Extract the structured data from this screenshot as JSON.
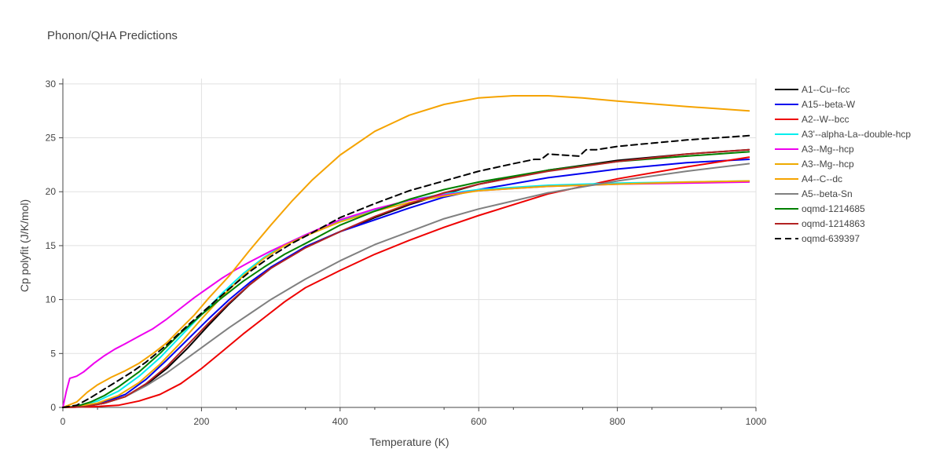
{
  "chart_data": {
    "type": "line",
    "title": "Phonon/QHA Predictions",
    "xlabel": "Temperature (K)",
    "ylabel": "Cp polyfit (J/K/mol)",
    "xlim": [
      0,
      1000
    ],
    "ylim": [
      0,
      30.5
    ],
    "xticks": [
      0,
      200,
      400,
      600,
      800,
      1000
    ],
    "yticks": [
      0,
      5,
      10,
      15,
      20,
      25,
      30
    ],
    "grid": true,
    "legend_position": "right",
    "series": [
      {
        "name": "A1--Cu--fcc",
        "color": "#000000",
        "dash": "solid",
        "points": [
          [
            0,
            0
          ],
          [
            30,
            0.05
          ],
          [
            60,
            0.4
          ],
          [
            90,
            1.0
          ],
          [
            120,
            2.1
          ],
          [
            150,
            3.6
          ],
          [
            180,
            5.5
          ],
          [
            210,
            7.6
          ],
          [
            240,
            9.6
          ],
          [
            270,
            11.4
          ],
          [
            300,
            12.9
          ],
          [
            350,
            14.9
          ],
          [
            400,
            16.3
          ],
          [
            450,
            17.6
          ],
          [
            500,
            18.8
          ],
          [
            550,
            19.8
          ],
          [
            600,
            20.7
          ],
          [
            700,
            22.0
          ],
          [
            800,
            22.9
          ],
          [
            900,
            23.5
          ],
          [
            990,
            23.9
          ]
        ]
      },
      {
        "name": "A15--beta-W",
        "color": "#0000ee",
        "dash": "solid",
        "points": [
          [
            0,
            0
          ],
          [
            30,
            0.05
          ],
          [
            60,
            0.5
          ],
          [
            90,
            1.2
          ],
          [
            120,
            2.6
          ],
          [
            150,
            4.4
          ],
          [
            180,
            6.3
          ],
          [
            210,
            8.2
          ],
          [
            240,
            10.0
          ],
          [
            270,
            11.6
          ],
          [
            300,
            13.0
          ],
          [
            350,
            14.9
          ],
          [
            400,
            16.3
          ],
          [
            450,
            17.4
          ],
          [
            500,
            18.5
          ],
          [
            550,
            19.5
          ],
          [
            600,
            20.2
          ],
          [
            700,
            21.3
          ],
          [
            800,
            22.1
          ],
          [
            900,
            22.7
          ],
          [
            990,
            23.0
          ]
        ]
      },
      {
        "name": "A2--W--bcc",
        "color": "#ee0000",
        "dash": "solid",
        "points": [
          [
            0,
            0
          ],
          [
            40,
            0.05
          ],
          [
            80,
            0.2
          ],
          [
            110,
            0.6
          ],
          [
            140,
            1.2
          ],
          [
            170,
            2.2
          ],
          [
            200,
            3.6
          ],
          [
            230,
            5.2
          ],
          [
            260,
            6.8
          ],
          [
            290,
            8.3
          ],
          [
            320,
            9.8
          ],
          [
            350,
            11.1
          ],
          [
            400,
            12.7
          ],
          [
            450,
            14.2
          ],
          [
            500,
            15.5
          ],
          [
            550,
            16.7
          ],
          [
            600,
            17.8
          ],
          [
            700,
            19.8
          ],
          [
            800,
            21.2
          ],
          [
            900,
            22.3
          ],
          [
            990,
            23.2
          ]
        ]
      },
      {
        "name": "A3'--alpha-La--double-hcp",
        "color": "#00eeee",
        "dash": "solid",
        "points": [
          [
            0,
            0
          ],
          [
            20,
            0.1
          ],
          [
            50,
            0.6
          ],
          [
            80,
            1.5
          ],
          [
            110,
            2.9
          ],
          [
            140,
            4.6
          ],
          [
            170,
            6.6
          ],
          [
            200,
            8.6
          ],
          [
            230,
            10.6
          ],
          [
            260,
            12.4
          ],
          [
            290,
            13.9
          ],
          [
            320,
            15.1
          ],
          [
            350,
            16.0
          ],
          [
            400,
            17.3
          ],
          [
            450,
            18.3
          ],
          [
            500,
            19.2
          ],
          [
            550,
            19.8
          ],
          [
            600,
            20.2
          ],
          [
            700,
            20.6
          ],
          [
            800,
            20.8
          ],
          [
            900,
            20.9
          ],
          [
            990,
            21.0
          ]
        ]
      },
      {
        "name": "A3--Mg--hcp",
        "color": "#ee00ee",
        "dash": "solid",
        "points": [
          [
            0,
            0
          ],
          [
            5,
            1.5
          ],
          [
            10,
            2.7
          ],
          [
            20,
            2.9
          ],
          [
            30,
            3.3
          ],
          [
            45,
            4.1
          ],
          [
            60,
            4.8
          ],
          [
            75,
            5.4
          ],
          [
            90,
            5.9
          ],
          [
            110,
            6.6
          ],
          [
            130,
            7.3
          ],
          [
            150,
            8.2
          ],
          [
            170,
            9.2
          ],
          [
            190,
            10.2
          ],
          [
            210,
            11.1
          ],
          [
            230,
            12.0
          ],
          [
            250,
            12.8
          ],
          [
            270,
            13.5
          ],
          [
            300,
            14.5
          ],
          [
            350,
            16.0
          ],
          [
            400,
            17.4
          ],
          [
            450,
            18.4
          ],
          [
            500,
            19.2
          ],
          [
            550,
            19.7
          ],
          [
            600,
            20.1
          ],
          [
            700,
            20.5
          ],
          [
            800,
            20.7
          ],
          [
            900,
            20.8
          ],
          [
            990,
            20.9
          ]
        ]
      },
      {
        "name": "A3--Mg--hcp",
        "color": "#eeaa00",
        "dash": "solid",
        "points": [
          [
            0,
            0
          ],
          [
            20,
            0.1
          ],
          [
            50,
            0.4
          ],
          [
            80,
            1.1
          ],
          [
            110,
            2.3
          ],
          [
            140,
            4.0
          ],
          [
            170,
            6.0
          ],
          [
            200,
            8.2
          ],
          [
            230,
            10.3
          ],
          [
            260,
            12.2
          ],
          [
            290,
            13.8
          ],
          [
            320,
            15.0
          ],
          [
            350,
            15.9
          ],
          [
            400,
            17.2
          ],
          [
            450,
            18.2
          ],
          [
            500,
            19.0
          ],
          [
            550,
            19.6
          ],
          [
            600,
            20.1
          ],
          [
            700,
            20.5
          ],
          [
            800,
            20.7
          ],
          [
            900,
            20.9
          ],
          [
            990,
            21.0
          ]
        ]
      },
      {
        "name": "A4--C--dc",
        "color": "#f5a300",
        "dash": "solid",
        "points": [
          [
            0,
            0
          ],
          [
            20,
            0.5
          ],
          [
            35,
            1.4
          ],
          [
            50,
            2.1
          ],
          [
            70,
            2.8
          ],
          [
            90,
            3.4
          ],
          [
            110,
            4.1
          ],
          [
            130,
            5.0
          ],
          [
            150,
            6.0
          ],
          [
            170,
            7.3
          ],
          [
            190,
            8.6
          ],
          [
            210,
            10.1
          ],
          [
            240,
            12.2
          ],
          [
            270,
            14.6
          ],
          [
            300,
            16.9
          ],
          [
            330,
            19.1
          ],
          [
            360,
            21.1
          ],
          [
            400,
            23.4
          ],
          [
            450,
            25.6
          ],
          [
            500,
            27.1
          ],
          [
            550,
            28.1
          ],
          [
            600,
            28.7
          ],
          [
            650,
            28.9
          ],
          [
            700,
            28.9
          ],
          [
            750,
            28.7
          ],
          [
            800,
            28.4
          ],
          [
            900,
            27.9
          ],
          [
            990,
            27.5
          ]
        ]
      },
      {
        "name": "A5--beta-Sn",
        "color": "#808080",
        "dash": "solid",
        "points": [
          [
            0,
            0
          ],
          [
            30,
            0.05
          ],
          [
            60,
            0.4
          ],
          [
            90,
            1.0
          ],
          [
            120,
            2.0
          ],
          [
            150,
            3.2
          ],
          [
            180,
            4.6
          ],
          [
            210,
            6.0
          ],
          [
            240,
            7.4
          ],
          [
            270,
            8.7
          ],
          [
            300,
            10.0
          ],
          [
            350,
            11.9
          ],
          [
            400,
            13.6
          ],
          [
            450,
            15.1
          ],
          [
            500,
            16.3
          ],
          [
            550,
            17.5
          ],
          [
            600,
            18.4
          ],
          [
            700,
            19.9
          ],
          [
            800,
            21.0
          ],
          [
            900,
            21.9
          ],
          [
            990,
            22.6
          ]
        ]
      },
      {
        "name": "oqmd-1214685",
        "color": "#008000",
        "dash": "solid",
        "points": [
          [
            0,
            0
          ],
          [
            20,
            0.1
          ],
          [
            40,
            0.5
          ],
          [
            60,
            1.1
          ],
          [
            80,
            1.9
          ],
          [
            110,
            3.3
          ],
          [
            140,
            5.0
          ],
          [
            170,
            6.9
          ],
          [
            200,
            8.6
          ],
          [
            230,
            10.2
          ],
          [
            260,
            11.7
          ],
          [
            290,
            13.0
          ],
          [
            320,
            14.2
          ],
          [
            350,
            15.2
          ],
          [
            400,
            16.9
          ],
          [
            450,
            18.2
          ],
          [
            500,
            19.3
          ],
          [
            550,
            20.2
          ],
          [
            600,
            20.9
          ],
          [
            700,
            22.0
          ],
          [
            800,
            22.8
          ],
          [
            900,
            23.3
          ],
          [
            990,
            23.7
          ]
        ]
      },
      {
        "name": "oqmd-1214863",
        "color": "#b22222",
        "dash": "solid",
        "points": [
          [
            0,
            0
          ],
          [
            30,
            0.05
          ],
          [
            60,
            0.4
          ],
          [
            90,
            1.0
          ],
          [
            120,
            2.2
          ],
          [
            150,
            3.8
          ],
          [
            180,
            5.8
          ],
          [
            210,
            7.8
          ],
          [
            240,
            9.7
          ],
          [
            270,
            11.4
          ],
          [
            300,
            12.9
          ],
          [
            350,
            14.8
          ],
          [
            400,
            16.3
          ],
          [
            450,
            17.7
          ],
          [
            500,
            18.9
          ],
          [
            550,
            19.9
          ],
          [
            600,
            20.7
          ],
          [
            700,
            21.9
          ],
          [
            800,
            22.8
          ],
          [
            900,
            23.5
          ],
          [
            990,
            23.9
          ]
        ]
      },
      {
        "name": "oqmd-639397",
        "color": "#000000",
        "dash": "dash",
        "points": [
          [
            0,
            0
          ],
          [
            20,
            0.2
          ],
          [
            40,
            0.9
          ],
          [
            60,
            1.7
          ],
          [
            80,
            2.5
          ],
          [
            100,
            3.3
          ],
          [
            120,
            4.2
          ],
          [
            150,
            5.8
          ],
          [
            180,
            7.6
          ],
          [
            210,
            9.3
          ],
          [
            240,
            11.0
          ],
          [
            270,
            12.6
          ],
          [
            300,
            14.0
          ],
          [
            330,
            15.2
          ],
          [
            360,
            16.2
          ],
          [
            400,
            17.6
          ],
          [
            450,
            18.9
          ],
          [
            500,
            20.1
          ],
          [
            550,
            21.0
          ],
          [
            600,
            21.9
          ],
          [
            650,
            22.6
          ],
          [
            680,
            23.0
          ],
          [
            690,
            23.0
          ],
          [
            700,
            23.5
          ],
          [
            720,
            23.4
          ],
          [
            745,
            23.3
          ],
          [
            755,
            23.9
          ],
          [
            770,
            23.9
          ],
          [
            800,
            24.2
          ],
          [
            850,
            24.5
          ],
          [
            900,
            24.8
          ],
          [
            990,
            25.2
          ]
        ]
      }
    ]
  }
}
